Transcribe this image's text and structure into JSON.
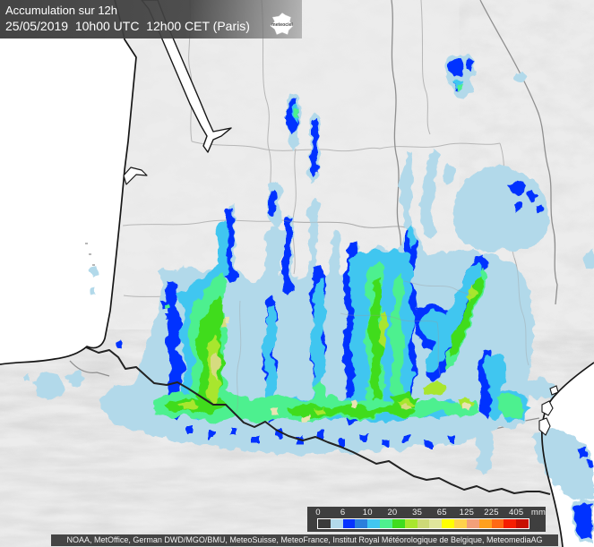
{
  "header": {
    "title": "Accumulation sur 12h",
    "datetime": "25/05/2019  10h00 UTC  12h00 CET (Paris)",
    "logo_text": "meteociel"
  },
  "legend": {
    "unit": "mm",
    "ticks": [
      "0",
      "6",
      "10",
      "20",
      "35",
      "65",
      "125",
      "225",
      "405"
    ],
    "colors": [
      "#3a3a3a",
      "#b2d9ea",
      "#0533ff",
      "#2a7fdc",
      "#41c6f0",
      "#4ef08f",
      "#3fdc1f",
      "#a8e62e",
      "#cdd977",
      "#e0e59c",
      "#ffff00",
      "#ffd24b",
      "#f2a07a",
      "#ffa01e",
      "#ff6914",
      "#f51e00",
      "#c80f00"
    ]
  },
  "attribution": "NOAA, MetOffice, German DWD/MGO/BMU, MeteoSuisse, MeteoFrance, Institut Royal Météorologique de Belgique, MeteomediaAG",
  "map": {
    "sea_color": "#ffffff",
    "land_color": "#ececec",
    "coast_color": "#161616",
    "border_country_color": "#2b2b2b",
    "border_region_color": "#8f8f8f",
    "border_dept_color": "#b7b7b7",
    "palette": {
      "p0": "#b2d9ea",
      "p1": "#0533ff",
      "p3": "#41c6f0",
      "p4": "#4ef08f",
      "p5": "#3fdc1f",
      "p6": "#a8e62e",
      "p7": "#d6db7f",
      "p8": "#e9e3b2"
    }
  }
}
